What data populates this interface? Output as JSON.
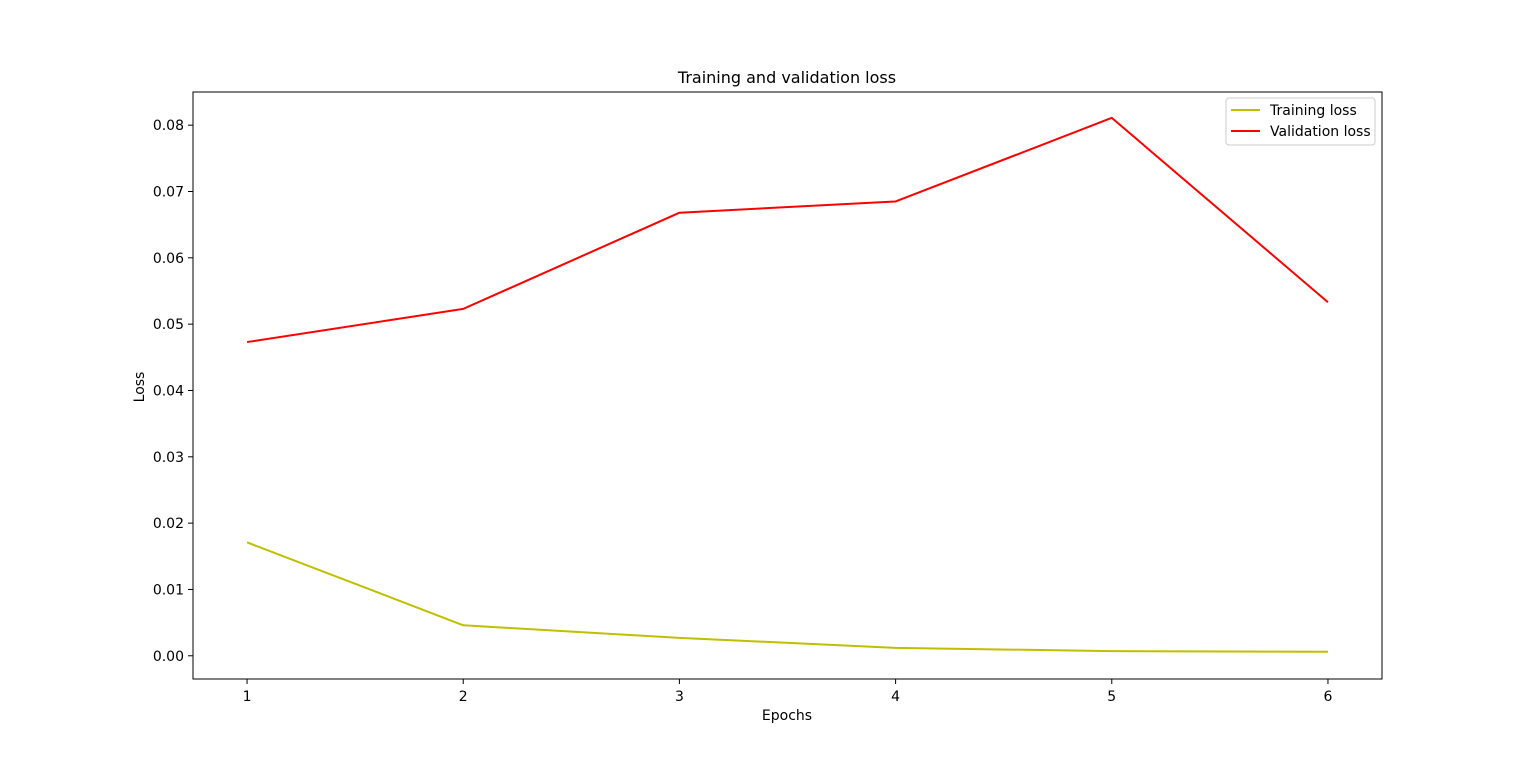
{
  "chart_data": {
    "type": "line",
    "title": "Training and validation loss",
    "xlabel": "Epochs",
    "ylabel": "Loss",
    "x": [
      1,
      2,
      3,
      4,
      5,
      6
    ],
    "xticks": [
      "1",
      "2",
      "3",
      "4",
      "5",
      "6"
    ],
    "yticks": [
      "0.00",
      "0.01",
      "0.02",
      "0.03",
      "0.04",
      "0.05",
      "0.06",
      "0.07",
      "0.08"
    ],
    "xlim": [
      0.75,
      6.25
    ],
    "ylim": [
      -0.0035,
      0.085
    ],
    "grid": false,
    "legend_position": "top-right",
    "series": [
      {
        "name": "Training loss",
        "color": "#bfbf00",
        "values": [
          0.0171,
          0.0046,
          0.0027,
          0.0012,
          0.0007,
          0.0006
        ]
      },
      {
        "name": "Validation loss",
        "color": "#ff0000",
        "values": [
          0.0473,
          0.0523,
          0.0668,
          0.0685,
          0.0811,
          0.0533
        ]
      }
    ]
  }
}
